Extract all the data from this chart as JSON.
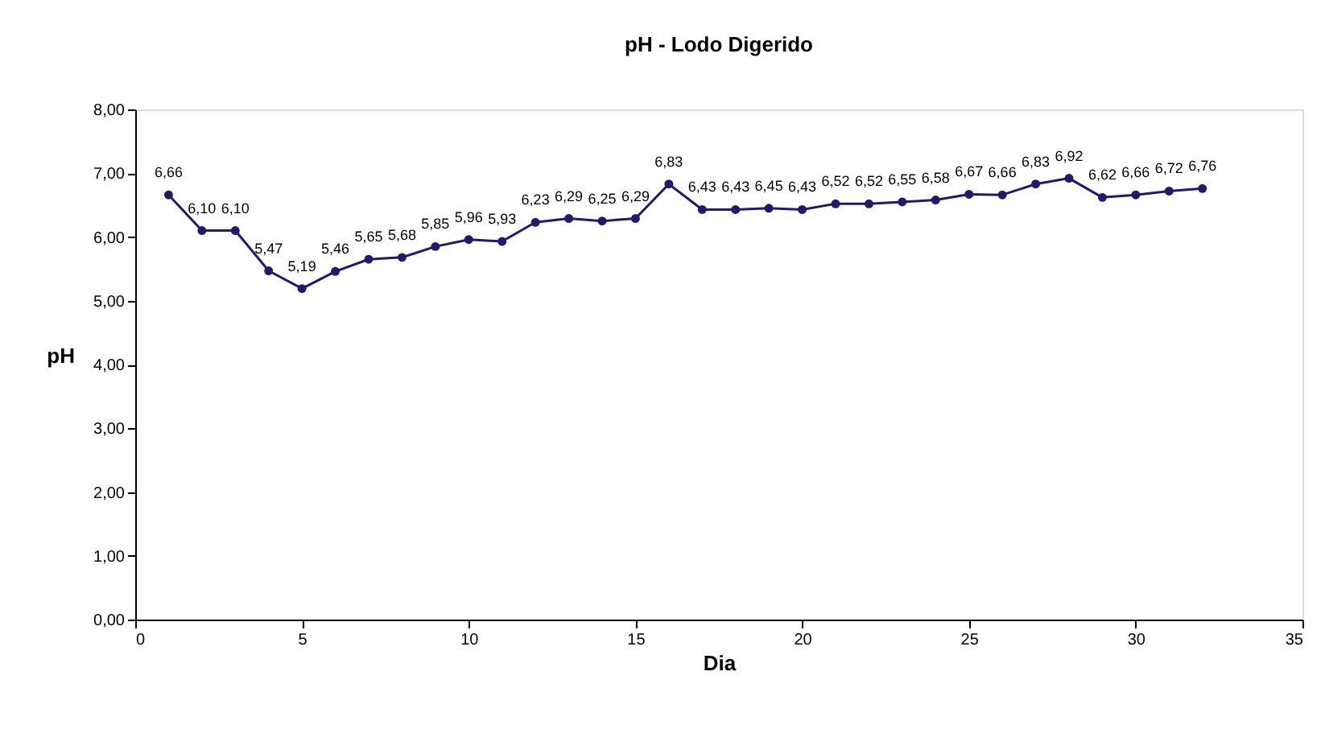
{
  "chart_data": {
    "type": "line",
    "title": "pH - Lodo Digerido",
    "xlabel": "Dia",
    "ylabel": "pH",
    "x": [
      1,
      2,
      3,
      4,
      5,
      6,
      7,
      8,
      9,
      10,
      11,
      12,
      13,
      14,
      15,
      16,
      17,
      18,
      19,
      20,
      21,
      22,
      23,
      24,
      25,
      26,
      27,
      28,
      29,
      30,
      31,
      32
    ],
    "series": [
      {
        "color": "#1f1a6e",
        "values": [
          6.66,
          6.1,
          6.1,
          5.47,
          5.19,
          5.46,
          5.65,
          5.68,
          5.85,
          5.96,
          5.93,
          6.23,
          6.29,
          6.25,
          6.29,
          6.83,
          6.43,
          6.43,
          6.45,
          6.43,
          6.52,
          6.52,
          6.55,
          6.58,
          6.67,
          6.66,
          6.83,
          6.92,
          6.62,
          6.66,
          6.72,
          6.76
        ],
        "value_labels": [
          "6,66",
          "6,10",
          "6,10",
          "5,47",
          "5,19",
          "5,46",
          "5,65",
          "5,68",
          "5,85",
          "5,96",
          "5,93",
          "6,23",
          "6,29",
          "6,25",
          "6,29",
          "6,83",
          "6,43",
          "6,43",
          "6,45",
          "6,43",
          "6,52",
          "6,52",
          "6,55",
          "6,58",
          "6,67",
          "6,66",
          "6,83",
          "6,92",
          "6,62",
          "6,66",
          "6,72",
          "6,76"
        ]
      }
    ],
    "xlim": [
      0,
      35
    ],
    "xticks": [
      0,
      5,
      10,
      15,
      20,
      25,
      30,
      35
    ],
    "ylim": [
      0,
      8
    ],
    "yticks": [
      {
        "value": 0,
        "label": "0,00"
      },
      {
        "value": 1,
        "label": "1,00"
      },
      {
        "value": 2,
        "label": "2,00"
      },
      {
        "value": 3,
        "label": "3,00"
      },
      {
        "value": 4,
        "label": "4,00"
      },
      {
        "value": 5,
        "label": "5,00"
      },
      {
        "value": 6,
        "label": "6,00"
      },
      {
        "value": 7,
        "label": "7,00"
      },
      {
        "value": 8,
        "label": "8,00"
      }
    ],
    "marker": "circle",
    "line_style": "solid",
    "grid": false
  }
}
